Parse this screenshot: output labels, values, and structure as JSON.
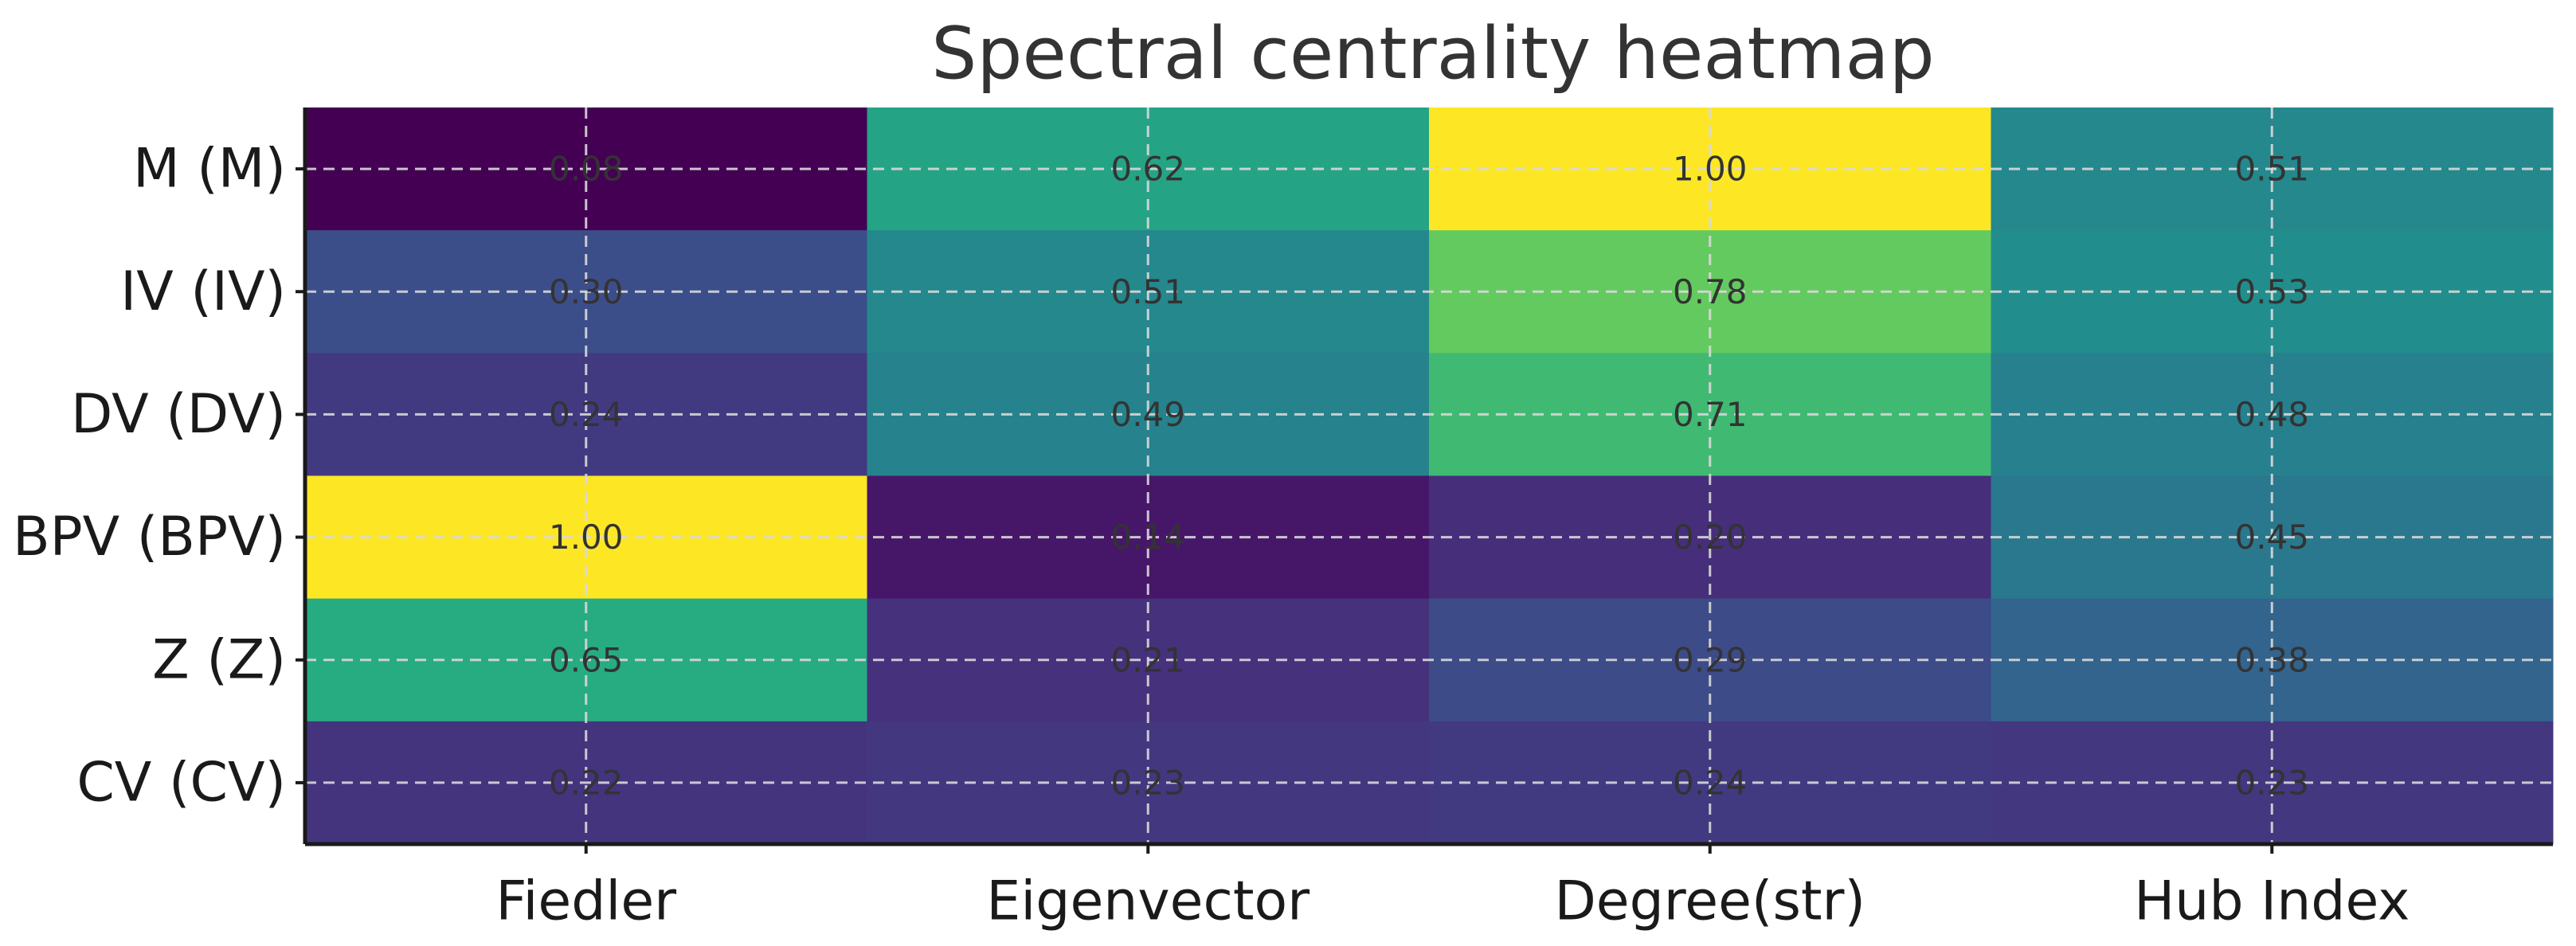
{
  "chart_data": {
    "type": "heatmap",
    "title": "Spectral centrality heatmap",
    "xlabel": "",
    "ylabel": "",
    "columns": [
      "Fiedler",
      "Eigenvector",
      "Degree(str)",
      "Hub Index"
    ],
    "rows": [
      "M (M)",
      "IV (IV)",
      "DV (DV)",
      "BPV (BPV)",
      "Z (Z)",
      "CV (CV)"
    ],
    "values": [
      [
        0.08,
        0.62,
        1.0,
        0.51
      ],
      [
        0.3,
        0.51,
        0.78,
        0.53
      ],
      [
        0.24,
        0.49,
        0.71,
        0.48
      ],
      [
        1.0,
        0.14,
        0.2,
        0.45
      ],
      [
        0.65,
        0.21,
        0.29,
        0.38
      ],
      [
        0.22,
        0.23,
        0.24,
        0.23
      ]
    ],
    "value_labels": [
      [
        "0.08",
        "0.62",
        "1.00",
        "0.51"
      ],
      [
        "0.30",
        "0.51",
        "0.78",
        "0.53"
      ],
      [
        "0.24",
        "0.49",
        "0.71",
        "0.48"
      ],
      [
        "1.00",
        "0.14",
        "0.20",
        "0.45"
      ],
      [
        "0.65",
        "0.21",
        "0.29",
        "0.38"
      ],
      [
        "0.22",
        "0.23",
        "0.24",
        "0.23"
      ]
    ],
    "colormap": "viridis",
    "vmin": 0.08,
    "vmax": 1.0,
    "grid": true
  }
}
